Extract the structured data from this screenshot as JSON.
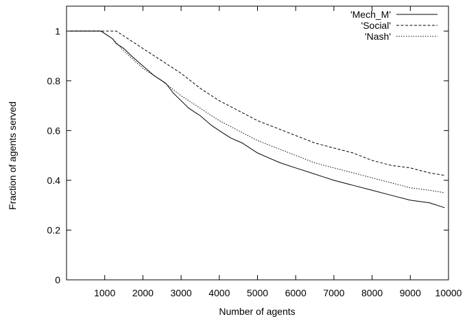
{
  "chart_data": {
    "type": "line",
    "title": "",
    "xlabel": "Number of agents",
    "ylabel": "Fraction of agents served",
    "xlim": [
      0,
      10000
    ],
    "ylim": [
      0,
      1.1
    ],
    "xticks": [
      1000,
      2000,
      3000,
      4000,
      5000,
      6000,
      7000,
      8000,
      9000,
      10000
    ],
    "yticks": [
      0,
      0.2,
      0.4,
      0.6,
      0.8,
      1
    ],
    "grid": false,
    "legend_position": "top-right",
    "series": [
      {
        "name": "'Mech_M'",
        "style": "solid",
        "x": [
          100,
          900,
          1000,
          1200,
          1300,
          1500,
          1700,
          2000,
          2300,
          2600,
          2800,
          3000,
          3200,
          3500,
          3800,
          4000,
          4300,
          4600,
          4900,
          5000,
          5300,
          5600,
          6000,
          6400,
          6800,
          7000,
          7500,
          8000,
          8500,
          9000,
          9500,
          9900
        ],
        "y": [
          1.0,
          1.0,
          0.99,
          0.97,
          0.95,
          0.93,
          0.9,
          0.86,
          0.82,
          0.79,
          0.75,
          0.72,
          0.69,
          0.66,
          0.62,
          0.6,
          0.57,
          0.55,
          0.52,
          0.51,
          0.49,
          0.47,
          0.45,
          0.43,
          0.41,
          0.4,
          0.38,
          0.36,
          0.34,
          0.32,
          0.31,
          0.29
        ]
      },
      {
        "name": "'Social'",
        "style": "dashed",
        "x": [
          100,
          1300,
          1500,
          2000,
          2500,
          3000,
          3500,
          4000,
          4500,
          5000,
          5500,
          6000,
          6500,
          7000,
          7500,
          8000,
          8500,
          9000,
          9500,
          9900
        ],
        "y": [
          1.0,
          1.0,
          0.98,
          0.93,
          0.88,
          0.83,
          0.77,
          0.72,
          0.68,
          0.64,
          0.61,
          0.58,
          0.55,
          0.53,
          0.51,
          0.48,
          0.46,
          0.45,
          0.43,
          0.42
        ]
      },
      {
        "name": "'Nash'",
        "style": "dotted",
        "x": [
          100,
          900,
          1000,
          1200,
          1500,
          2000,
          2500,
          3000,
          3500,
          4000,
          4500,
          5000,
          5500,
          6000,
          6500,
          7000,
          7500,
          8000,
          8500,
          9000,
          9500,
          9900
        ],
        "y": [
          1.0,
          1.0,
          0.99,
          0.97,
          0.92,
          0.85,
          0.8,
          0.74,
          0.69,
          0.64,
          0.6,
          0.56,
          0.53,
          0.5,
          0.47,
          0.45,
          0.43,
          0.41,
          0.39,
          0.37,
          0.36,
          0.35
        ]
      }
    ]
  }
}
